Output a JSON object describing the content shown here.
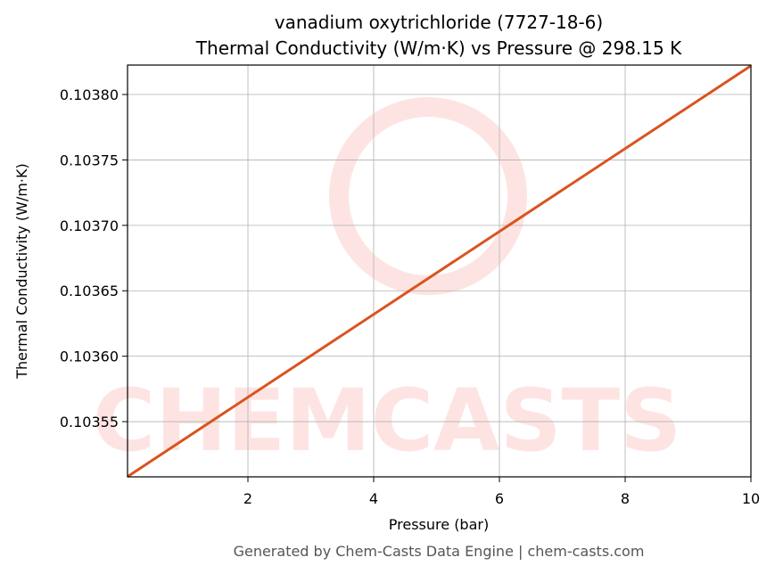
{
  "chart_data": {
    "type": "line",
    "title": "vanadium oxytrichloride (7727-18-6)",
    "subtitle": "Thermal Conductivity (W/m·K) vs Pressure @ 298.15 K",
    "x_label": "Pressure (bar)",
    "y_label": "Thermal Conductivity (W/m·K)",
    "watermark": "CHEMCASTS",
    "footer": "Generated by Chem-Casts Data Engine | chem-casts.com",
    "x": [
      0.085,
      10
    ],
    "series": [
      {
        "color": "#d9541e",
        "values": [
          0.103508,
          0.103822
        ]
      }
    ],
    "xlim": [
      0.085,
      10
    ],
    "ylim": [
      0.1035078,
      0.1038225
    ],
    "xticks": [
      2,
      4,
      6,
      8,
      10
    ],
    "yticks": [
      0.10355,
      {
        "value": 0.1036,
        "label": "0.10360"
      },
      0.10365,
      {
        "value": 0.1037,
        "label": "0.10370"
      },
      0.10375,
      {
        "value": 0.1038,
        "label": "0.10380"
      }
    ],
    "grid": true
  }
}
